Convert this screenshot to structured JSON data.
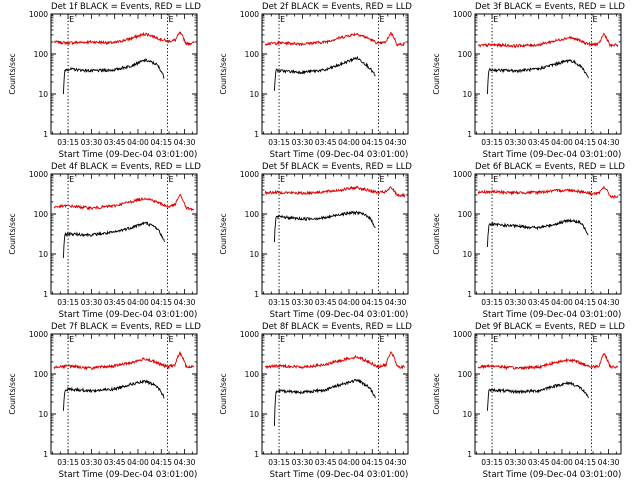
{
  "colors": {
    "events": "#000000",
    "lld": "#dd0000",
    "axis": "#000000",
    "background": "#ffffff"
  },
  "chart_data": [
    {
      "type": "line",
      "title": "Det 1f BLACK = Events, RED = LLD",
      "xlabel": "Start Time (09-Dec-04 03:01:00)",
      "ylabel": "Counts/sec",
      "xlim": [
        "03:04",
        "04:38"
      ],
      "ylim": [
        1,
        1000
      ],
      "yscale": "log",
      "x_ticks": [
        "03:15",
        "03:30",
        "03:45",
        "04:00",
        "04:15",
        "04:30"
      ],
      "y_ticks": [
        "1",
        "10",
        "100",
        "1000"
      ],
      "markers": [
        "03:15",
        "04:19"
      ],
      "flag_labels": [
        "E",
        "E"
      ],
      "series": [
        {
          "color": "#dd0000",
          "x": [
            "03:06",
            "03:15",
            "03:30",
            "03:45",
            "03:55",
            "04:05",
            "04:15",
            "04:19",
            "04:24",
            "04:27",
            "04:31",
            "04:36"
          ],
          "values": [
            200,
            190,
            200,
            190,
            240,
            320,
            230,
            210,
            220,
            340,
            180,
            190
          ]
        },
        {
          "color": "#000000",
          "x": [
            "03:12",
            "03:13",
            "03:15",
            "03:30",
            "03:45",
            "03:55",
            "04:05",
            "04:12",
            "04:17"
          ],
          "values": [
            10,
            40,
            42,
            38,
            40,
            50,
            70,
            55,
            25
          ]
        }
      ]
    },
    {
      "type": "line",
      "title": "Det 2f BLACK = Events, RED = LLD",
      "xlabel": "Start Time (09-Dec-04 03:01:00)",
      "ylabel": "Counts/sec",
      "xlim": [
        "03:04",
        "04:38"
      ],
      "ylim": [
        1,
        1000
      ],
      "yscale": "log",
      "x_ticks": [
        "03:15",
        "03:30",
        "03:45",
        "04:00",
        "04:15",
        "04:30"
      ],
      "y_ticks": [
        "1",
        "10",
        "100",
        "1000"
      ],
      "markers": [
        "03:15",
        "04:19"
      ],
      "flag_labels": [
        "E",
        "E"
      ],
      "series": [
        {
          "color": "#dd0000",
          "x": [
            "03:06",
            "03:15",
            "03:30",
            "03:45",
            "03:55",
            "04:05",
            "04:15",
            "04:19",
            "04:24",
            "04:27",
            "04:31",
            "04:36"
          ],
          "values": [
            180,
            190,
            180,
            200,
            260,
            320,
            220,
            180,
            200,
            340,
            170,
            180
          ]
        },
        {
          "color": "#000000",
          "x": [
            "03:12",
            "03:13",
            "03:15",
            "03:30",
            "03:45",
            "03:55",
            "04:05",
            "04:12",
            "04:17"
          ],
          "values": [
            12,
            40,
            38,
            35,
            40,
            55,
            80,
            50,
            28
          ]
        }
      ]
    },
    {
      "type": "line",
      "title": "Det 3f BLACK = Events, RED = LLD",
      "xlabel": "Start Time (09-Dec-04 03:01:00)",
      "ylabel": "Counts/sec",
      "xlim": [
        "03:04",
        "04:38"
      ],
      "ylim": [
        1,
        1000
      ],
      "yscale": "log",
      "x_ticks": [
        "03:15",
        "03:30",
        "03:45",
        "04:00",
        "04:15",
        "04:30"
      ],
      "y_ticks": [
        "1",
        "10",
        "100",
        "1000"
      ],
      "markers": [
        "03:15",
        "04:19"
      ],
      "flag_labels": [
        "E",
        "E"
      ],
      "series": [
        {
          "color": "#dd0000",
          "x": [
            "03:06",
            "03:15",
            "03:30",
            "03:45",
            "03:55",
            "04:05",
            "04:15",
            "04:19",
            "04:24",
            "04:27",
            "04:31",
            "04:36"
          ],
          "values": [
            160,
            170,
            160,
            170,
            210,
            260,
            190,
            170,
            180,
            320,
            160,
            170
          ]
        },
        {
          "color": "#000000",
          "x": [
            "03:12",
            "03:13",
            "03:15",
            "03:30",
            "03:45",
            "03:55",
            "04:05",
            "04:12",
            "04:17"
          ],
          "values": [
            10,
            40,
            40,
            38,
            42,
            55,
            70,
            50,
            25
          ]
        }
      ]
    },
    {
      "type": "line",
      "title": "Det 4f BLACK = Events, RED = LLD",
      "xlabel": "Start Time (09-Dec-04 03:01:00)",
      "ylabel": "Counts/sec",
      "xlim": [
        "03:04",
        "04:38"
      ],
      "ylim": [
        1,
        1000
      ],
      "yscale": "log",
      "x_ticks": [
        "03:15",
        "03:30",
        "03:45",
        "04:00",
        "04:15",
        "04:30"
      ],
      "y_ticks": [
        "1",
        "10",
        "100",
        "1000"
      ],
      "markers": [
        "03:15",
        "04:19"
      ],
      "flag_labels": [
        "E",
        "E"
      ],
      "series": [
        {
          "color": "#dd0000",
          "x": [
            "03:06",
            "03:15",
            "03:30",
            "03:45",
            "03:55",
            "04:05",
            "04:15",
            "04:19",
            "04:24",
            "04:27",
            "04:31",
            "04:36"
          ],
          "values": [
            150,
            160,
            140,
            160,
            200,
            250,
            180,
            150,
            170,
            300,
            140,
            130
          ]
        },
        {
          "color": "#000000",
          "x": [
            "03:12",
            "03:13",
            "03:15",
            "03:30",
            "03:45",
            "03:55",
            "04:05",
            "04:12",
            "04:17"
          ],
          "values": [
            8,
            30,
            32,
            30,
            35,
            45,
            60,
            45,
            20
          ]
        }
      ]
    },
    {
      "type": "line",
      "title": "Det 5f BLACK = Events, RED = LLD",
      "xlabel": "Start Time (09-Dec-04 03:01:00)",
      "ylabel": "Counts/sec",
      "xlim": [
        "03:04",
        "04:38"
      ],
      "ylim": [
        1,
        1000
      ],
      "yscale": "log",
      "x_ticks": [
        "03:15",
        "03:30",
        "03:45",
        "04:00",
        "04:15",
        "04:30"
      ],
      "y_ticks": [
        "1",
        "10",
        "100",
        "1000"
      ],
      "markers": [
        "03:15",
        "04:19"
      ],
      "flag_labels": [
        "E",
        "E"
      ],
      "series": [
        {
          "color": "#dd0000",
          "x": [
            "03:06",
            "03:15",
            "03:30",
            "03:45",
            "03:55",
            "04:05",
            "04:15",
            "04:19",
            "04:24",
            "04:27",
            "04:31",
            "04:36"
          ],
          "values": [
            340,
            350,
            330,
            360,
            400,
            460,
            370,
            340,
            360,
            460,
            300,
            290
          ]
        },
        {
          "color": "#000000",
          "x": [
            "03:12",
            "03:13",
            "03:15",
            "03:30",
            "03:45",
            "03:55",
            "04:05",
            "04:12",
            "04:17"
          ],
          "values": [
            20,
            80,
            85,
            75,
            80,
            100,
            110,
            90,
            45
          ]
        }
      ]
    },
    {
      "type": "line",
      "title": "Det 6f BLACK = Events, RED = LLD",
      "xlabel": "Start Time (09-Dec-04 03:01:00)",
      "ylabel": "Counts/sec",
      "xlim": [
        "03:04",
        "04:38"
      ],
      "ylim": [
        1,
        1000
      ],
      "yscale": "log",
      "x_ticks": [
        "03:15",
        "03:30",
        "03:45",
        "04:00",
        "04:15",
        "04:30"
      ],
      "y_ticks": [
        "1",
        "10",
        "100",
        "1000"
      ],
      "markers": [
        "03:15",
        "04:19"
      ],
      "flag_labels": [
        "E",
        "E"
      ],
      "series": [
        {
          "color": "#dd0000",
          "x": [
            "03:06",
            "03:15",
            "03:30",
            "03:45",
            "03:55",
            "04:05",
            "04:15",
            "04:19",
            "04:24",
            "04:27",
            "04:31",
            "04:36"
          ],
          "values": [
            350,
            360,
            340,
            350,
            380,
            400,
            350,
            320,
            330,
            480,
            280,
            260
          ]
        },
        {
          "color": "#000000",
          "x": [
            "03:12",
            "03:13",
            "03:15",
            "03:30",
            "03:45",
            "03:55",
            "04:05",
            "04:12",
            "04:17"
          ],
          "values": [
            15,
            55,
            55,
            50,
            45,
            55,
            70,
            60,
            30
          ]
        }
      ]
    },
    {
      "type": "line",
      "title": "Det 7f BLACK = Events, RED = LLD",
      "xlabel": "Start Time (09-Dec-04 03:01:00)",
      "ylabel": "Counts/sec",
      "xlim": [
        "03:04",
        "04:38"
      ],
      "ylim": [
        1,
        1000
      ],
      "yscale": "log",
      "x_ticks": [
        "03:15",
        "03:30",
        "03:45",
        "04:00",
        "04:15",
        "04:30"
      ],
      "y_ticks": [
        "1",
        "10",
        "100",
        "1000"
      ],
      "markers": [
        "03:15",
        "04:19"
      ],
      "flag_labels": [
        "E",
        "E"
      ],
      "series": [
        {
          "color": "#dd0000",
          "x": [
            "03:06",
            "03:15",
            "03:30",
            "03:45",
            "03:55",
            "04:05",
            "04:15",
            "04:19",
            "04:24",
            "04:27",
            "04:31",
            "04:36"
          ],
          "values": [
            150,
            160,
            140,
            160,
            190,
            240,
            170,
            150,
            170,
            340,
            150,
            150
          ]
        },
        {
          "color": "#000000",
          "x": [
            "03:12",
            "03:13",
            "03:15",
            "03:30",
            "03:45",
            "03:55",
            "04:05",
            "04:12",
            "04:17"
          ],
          "values": [
            12,
            40,
            42,
            38,
            42,
            55,
            65,
            50,
            25
          ]
        }
      ]
    },
    {
      "type": "line",
      "title": "Det 8f BLACK = Events, RED = LLD",
      "xlabel": "Start Time (09-Dec-04 03:01:00)",
      "ylabel": "Counts/sec",
      "xlim": [
        "03:04",
        "04:38"
      ],
      "ylim": [
        1,
        1000
      ],
      "yscale": "log",
      "x_ticks": [
        "03:15",
        "03:30",
        "03:45",
        "04:00",
        "04:15",
        "04:30"
      ],
      "y_ticks": [
        "1",
        "10",
        "100",
        "1000"
      ],
      "markers": [
        "03:15",
        "04:19"
      ],
      "flag_labels": [
        "E",
        "E"
      ],
      "series": [
        {
          "color": "#dd0000",
          "x": [
            "03:06",
            "03:15",
            "03:30",
            "03:45",
            "03:55",
            "04:05",
            "04:15",
            "04:19",
            "04:24",
            "04:27",
            "04:31",
            "04:36"
          ],
          "values": [
            150,
            160,
            150,
            170,
            220,
            270,
            180,
            150,
            170,
            360,
            150,
            150
          ]
        },
        {
          "color": "#000000",
          "x": [
            "03:12",
            "03:13",
            "03:15",
            "03:30",
            "03:45",
            "03:55",
            "04:05",
            "04:12",
            "04:17"
          ],
          "values": [
            5,
            35,
            38,
            35,
            40,
            55,
            70,
            50,
            25
          ]
        }
      ]
    },
    {
      "type": "line",
      "title": "Det 9f BLACK = Events, RED = LLD",
      "xlabel": "Start Time (09-Dec-04 03:01:00)",
      "ylabel": "Counts/sec",
      "xlim": [
        "03:04",
        "04:38"
      ],
      "ylim": [
        1,
        1000
      ],
      "yscale": "log",
      "x_ticks": [
        "03:15",
        "03:30",
        "03:45",
        "04:00",
        "04:15",
        "04:30"
      ],
      "y_ticks": [
        "1",
        "10",
        "100",
        "1000"
      ],
      "markers": [
        "03:15",
        "04:19"
      ],
      "flag_labels": [
        "E",
        "E"
      ],
      "series": [
        {
          "color": "#dd0000",
          "x": [
            "03:06",
            "03:15",
            "03:30",
            "03:45",
            "03:55",
            "04:05",
            "04:15",
            "04:19",
            "04:24",
            "04:27",
            "04:31",
            "04:36"
          ],
          "values": [
            150,
            160,
            140,
            150,
            190,
            230,
            170,
            150,
            160,
            330,
            150,
            150
          ]
        },
        {
          "color": "#000000",
          "x": [
            "03:12",
            "03:13",
            "03:15",
            "03:30",
            "03:45",
            "03:55",
            "04:05",
            "04:12",
            "04:17"
          ],
          "values": [
            12,
            38,
            40,
            36,
            38,
            50,
            60,
            45,
            25
          ]
        }
      ]
    }
  ]
}
